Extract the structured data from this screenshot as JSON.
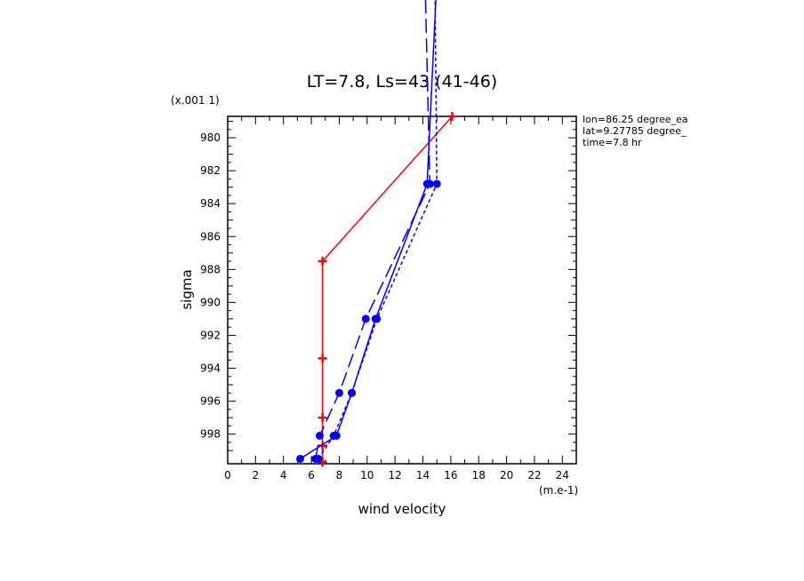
{
  "chart_data": {
    "type": "line",
    "title": "LT=7.8, Ls=43 (41-46)",
    "xlabel": "wind velocity",
    "ylabel": "sigma",
    "x_unit": "(m.e-1)",
    "y_unit": "(x.001 1)",
    "xlim": [
      0,
      25
    ],
    "ylim": [
      999.8,
      978.7
    ],
    "x_ticks": [
      "0",
      "2",
      "4",
      "6",
      "8",
      "10",
      "12",
      "14",
      "16",
      "18",
      "20",
      "22",
      "24"
    ],
    "y_ticks": [
      "980",
      "982",
      "984",
      "986",
      "988",
      "990",
      "992",
      "994",
      "996",
      "998"
    ],
    "x_tick_values": [
      0,
      2,
      4,
      6,
      8,
      10,
      12,
      14,
      16,
      18,
      20,
      22,
      24
    ],
    "y_tick_values": [
      980,
      982,
      984,
      986,
      988,
      990,
      992,
      994,
      996,
      998
    ],
    "info_lines": [
      "lon=86.25 degree_ea",
      "lat=9.27785 degree_",
      "time=7.8 hr"
    ],
    "series": [
      {
        "style": "solid",
        "color": "#ff0000",
        "marker": "plus",
        "points": [
          [
            6.8,
            999.7
          ],
          [
            6.8,
            998.7
          ],
          [
            6.8,
            997.0
          ],
          [
            6.8,
            993.4
          ],
          [
            6.8,
            987.5
          ],
          [
            16.1,
            978.7
          ]
        ]
      },
      {
        "style": "solid",
        "color": "#0000ff",
        "marker": "dot",
        "points": [
          [
            5.2,
            999.5
          ],
          [
            7.8,
            998.1
          ],
          [
            8.9,
            995.5
          ],
          [
            10.6,
            991.0
          ],
          [
            14.3,
            982.8
          ],
          [
            15.3,
            965.0
          ]
        ]
      },
      {
        "style": "dash",
        "color": "#0000ff",
        "marker": "dot",
        "points": [
          [
            6.3,
            999.5
          ],
          [
            6.6,
            998.1
          ],
          [
            8.0,
            995.5
          ],
          [
            9.9,
            991.0
          ],
          [
            14.5,
            982.8
          ],
          [
            14.0,
            965.0
          ]
        ]
      },
      {
        "style": "short-dash",
        "color": "#0000ff",
        "marker": "dot",
        "points": [
          [
            6.5,
            999.5
          ],
          [
            7.6,
            998.1
          ],
          [
            8.9,
            995.5
          ],
          [
            10.7,
            991.0
          ],
          [
            15.0,
            982.8
          ],
          [
            14.8,
            965.0
          ]
        ]
      }
    ]
  }
}
